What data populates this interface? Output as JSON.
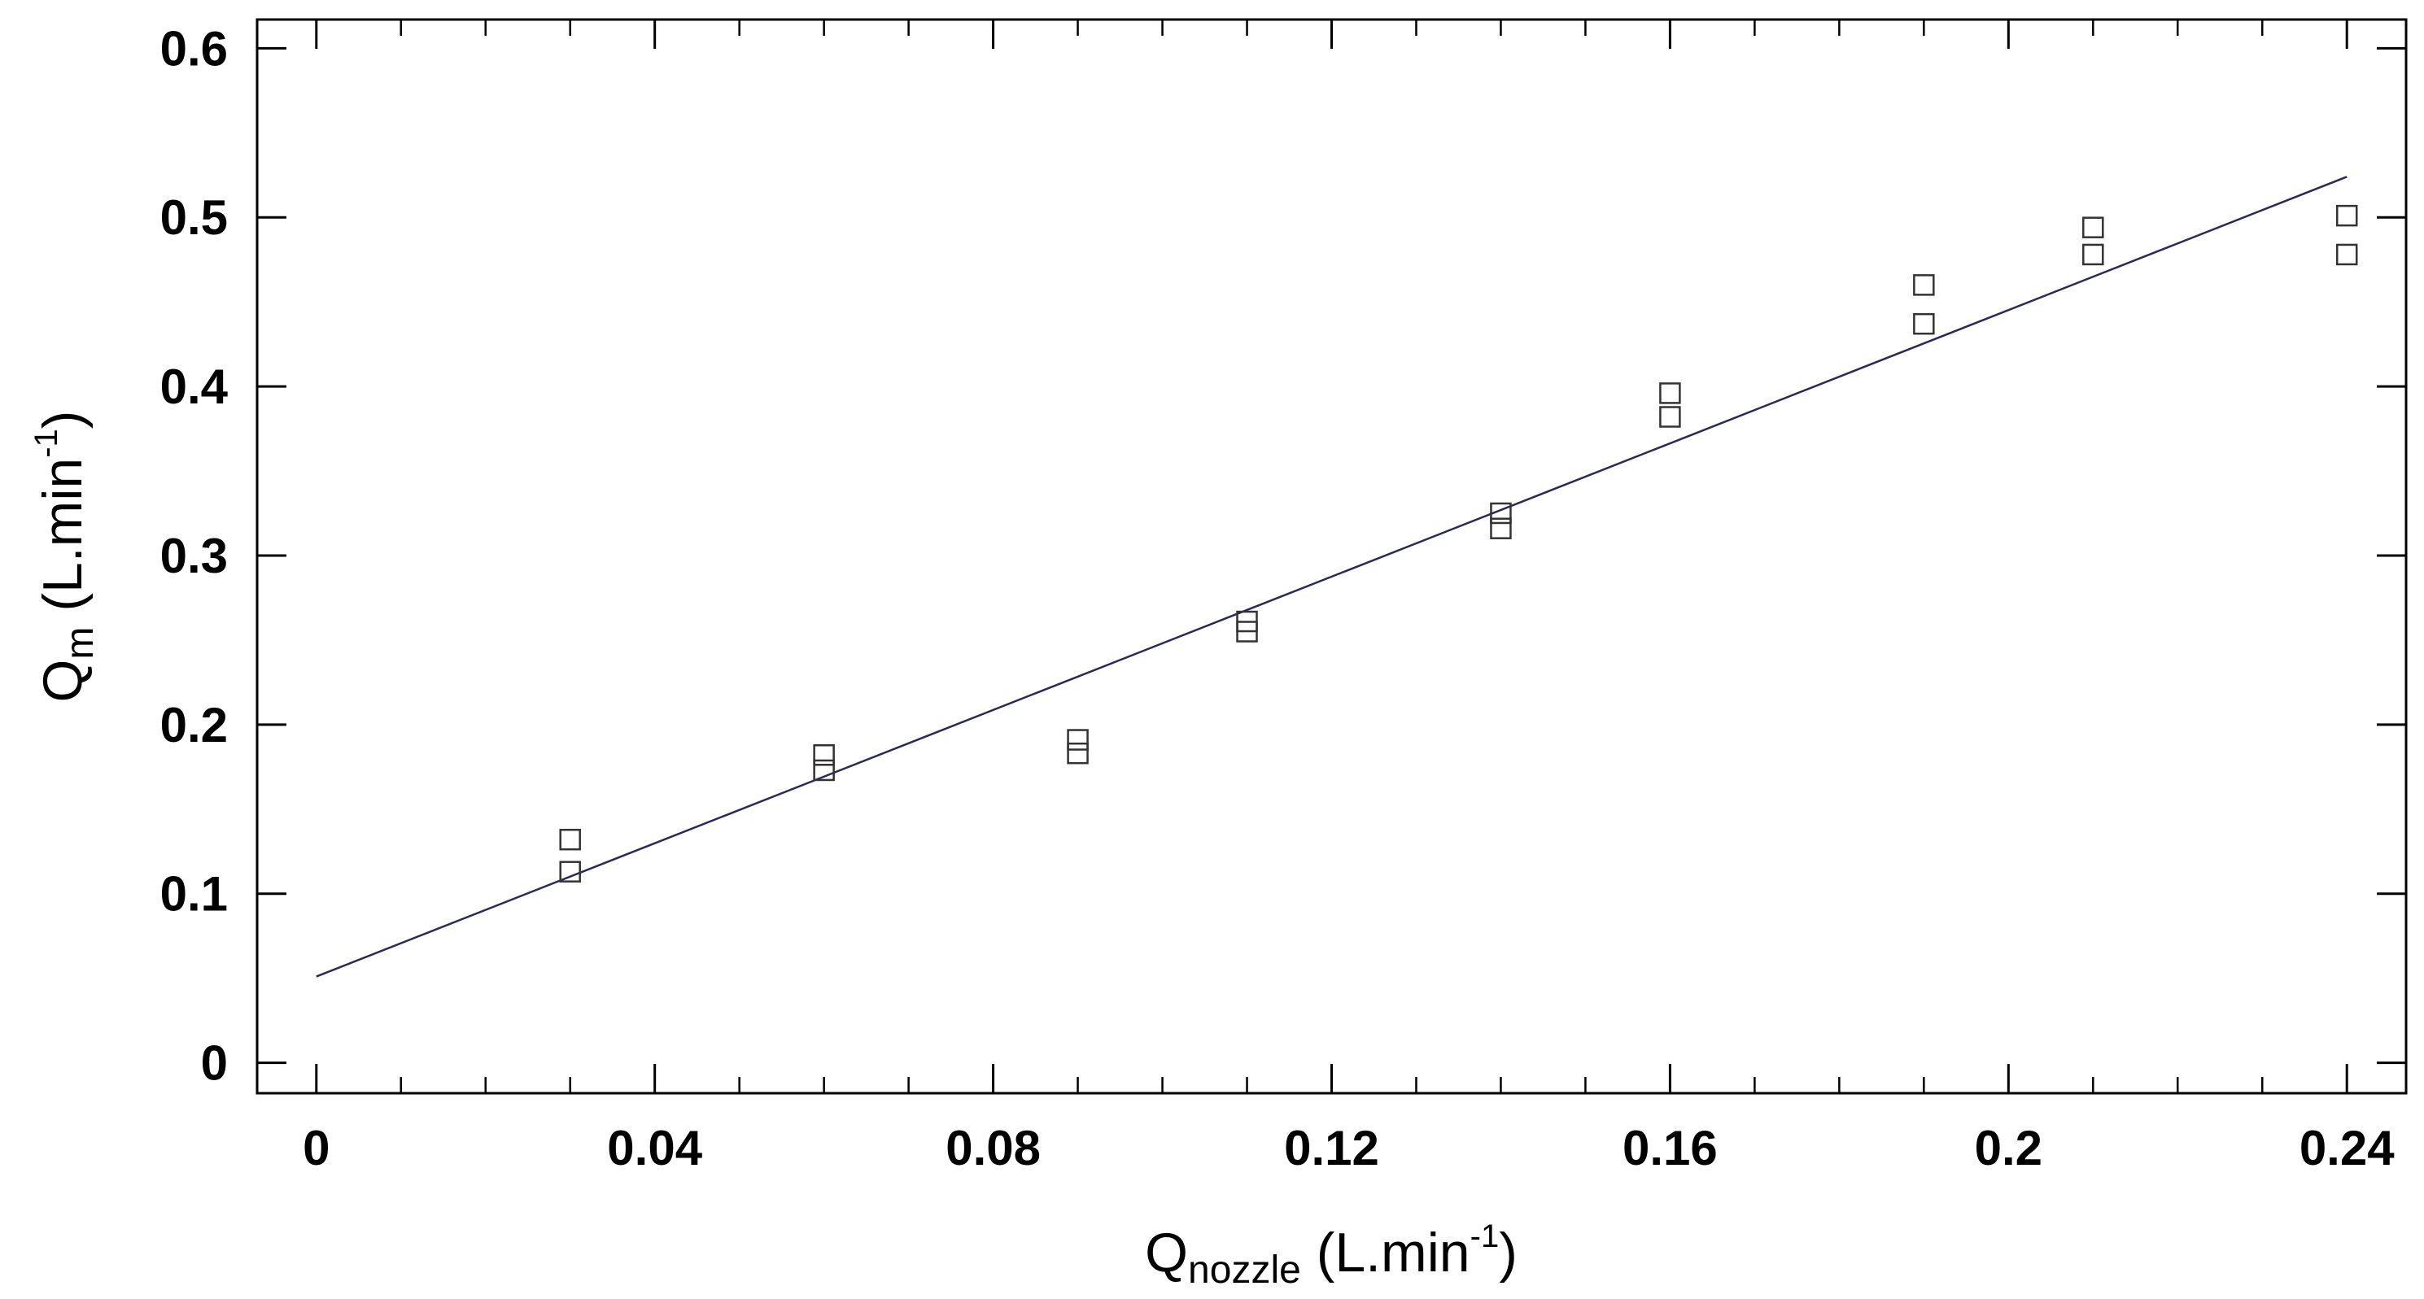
{
  "chart_data": {
    "type": "scatter",
    "title": "",
    "xlabel": {
      "base": "Q",
      "subscript": "nozzle",
      "unit_prefix": " (L.min",
      "unit_exponent": "-1",
      "unit_suffix": ")"
    },
    "ylabel": {
      "base": "Q",
      "subscript": "m",
      "unit_prefix": " (L.min",
      "unit_exponent": "-1",
      "unit_suffix": ")"
    },
    "xlim": [
      -0.007,
      0.247
    ],
    "ylim": [
      -0.018,
      0.617
    ],
    "x_ticks": [
      {
        "value": 0,
        "label": "0"
      },
      {
        "value": 0.04,
        "label": "0.04"
      },
      {
        "value": 0.08,
        "label": "0.08"
      },
      {
        "value": 0.12,
        "label": "0.12"
      },
      {
        "value": 0.16,
        "label": "0.16"
      },
      {
        "value": 0.2,
        "label": "0.2"
      },
      {
        "value": 0.24,
        "label": "0.24"
      }
    ],
    "x_minor_step": 0.01,
    "y_ticks": [
      {
        "value": 0,
        "label": "0"
      },
      {
        "value": 0.1,
        "label": "0.1"
      },
      {
        "value": 0.2,
        "label": "0.2"
      },
      {
        "value": 0.3,
        "label": "0.3"
      },
      {
        "value": 0.4,
        "label": "0.4"
      },
      {
        "value": 0.5,
        "label": "0.5"
      },
      {
        "value": 0.6,
        "label": "0.6"
      }
    ],
    "grid": false,
    "series": [
      {
        "marker": "square-open",
        "color": "#333333",
        "points": [
          {
            "x": 0.03,
            "y": 0.132
          },
          {
            "x": 0.03,
            "y": 0.113
          },
          {
            "x": 0.06,
            "y": 0.182
          },
          {
            "x": 0.06,
            "y": 0.173
          },
          {
            "x": 0.09,
            "y": 0.191
          },
          {
            "x": 0.09,
            "y": 0.183
          },
          {
            "x": 0.11,
            "y": 0.261
          },
          {
            "x": 0.11,
            "y": 0.255
          },
          {
            "x": 0.14,
            "y": 0.325
          },
          {
            "x": 0.14,
            "y": 0.316
          },
          {
            "x": 0.16,
            "y": 0.396
          },
          {
            "x": 0.16,
            "y": 0.382
          },
          {
            "x": 0.19,
            "y": 0.46
          },
          {
            "x": 0.19,
            "y": 0.437
          },
          {
            "x": 0.21,
            "y": 0.494
          },
          {
            "x": 0.21,
            "y": 0.478
          },
          {
            "x": 0.24,
            "y": 0.501
          },
          {
            "x": 0.24,
            "y": 0.478
          }
        ]
      }
    ],
    "fit_line": {
      "color": "#2a2a5a",
      "x": [
        0,
        0.24
      ],
      "y": [
        0.051,
        0.524
      ]
    }
  }
}
